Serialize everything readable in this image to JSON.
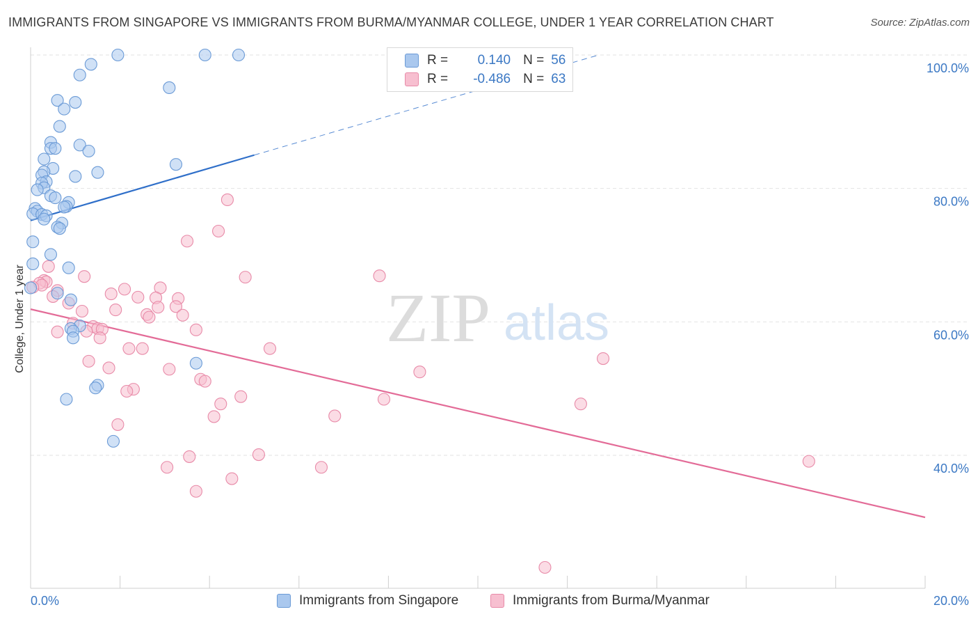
{
  "header": {
    "title": "IMMIGRANTS FROM SINGAPORE VS IMMIGRANTS FROM BURMA/MYANMAR COLLEGE, UNDER 1 YEAR CORRELATION CHART",
    "source": "Source: ZipAtlas.com"
  },
  "watermark": {
    "zip": "ZIP",
    "atlas": "atlas"
  },
  "legend": {
    "rows": [
      {
        "r_label": "R =",
        "r_value": "0.140",
        "n_label": "N =",
        "n_value": "56"
      },
      {
        "r_label": "R =",
        "r_value": "-0.486",
        "n_label": "N =",
        "n_value": "63"
      }
    ]
  },
  "bottom_legend": {
    "items": [
      {
        "label": "Immigrants from Singapore"
      },
      {
        "label": "Immigrants from Burma/Myanmar"
      }
    ]
  },
  "colors": {
    "singapore_fill": "#aac8ee",
    "singapore_stroke": "#6a9ad6",
    "singapore_line": "#2f6fc9",
    "burma_fill": "#f7bfd0",
    "burma_stroke": "#e88aa8",
    "burma_line": "#e36b97",
    "tick_label": "#3b78c4"
  },
  "chart_data": {
    "type": "scatter",
    "title": "IMMIGRANTS FROM SINGAPORE VS IMMIGRANTS FROM BURMA/MYANMAR COLLEGE, UNDER 1 YEAR CORRELATION CHART",
    "xlabel": "",
    "ylabel": "College, Under 1 year",
    "xlim": [
      0,
      20
    ],
    "ylim": [
      20,
      104
    ],
    "x_tick_labels": [
      "0.0%",
      "20.0%"
    ],
    "y_ticks": [
      40,
      60,
      80,
      100
    ],
    "y_tick_labels": [
      "40.0%",
      "60.0%",
      "80.0%",
      "100.0%"
    ],
    "grid": true,
    "legend_position": "top-center",
    "series": [
      {
        "name": "Immigrants from Singapore",
        "r": 0.14,
        "n": 56,
        "trend": {
          "x": [
            0.0,
            5.0
          ],
          "y": [
            75.2,
            85.0
          ],
          "dashed_to": [
            12.7,
            100.0
          ]
        },
        "points": [
          [
            1.95,
            100.0
          ],
          [
            3.9,
            100.0
          ],
          [
            4.65,
            100.0
          ],
          [
            1.35,
            98.6
          ],
          [
            1.1,
            97.0
          ],
          [
            3.1,
            95.1
          ],
          [
            0.6,
            93.2
          ],
          [
            1.0,
            92.9
          ],
          [
            0.75,
            91.9
          ],
          [
            0.65,
            89.3
          ],
          [
            0.45,
            86.9
          ],
          [
            1.1,
            86.5
          ],
          [
            0.45,
            86.0
          ],
          [
            0.55,
            86.0
          ],
          [
            1.3,
            85.6
          ],
          [
            0.3,
            84.4
          ],
          [
            3.25,
            83.6
          ],
          [
            0.5,
            83.0
          ],
          [
            0.3,
            82.5
          ],
          [
            1.5,
            82.4
          ],
          [
            0.25,
            82.0
          ],
          [
            1.0,
            81.8
          ],
          [
            0.35,
            81.0
          ],
          [
            0.25,
            80.8
          ],
          [
            0.3,
            80.1
          ],
          [
            0.15,
            79.8
          ],
          [
            0.45,
            78.9
          ],
          [
            0.55,
            78.6
          ],
          [
            0.85,
            77.9
          ],
          [
            0.8,
            77.3
          ],
          [
            0.75,
            77.2
          ],
          [
            0.1,
            77.0
          ],
          [
            0.15,
            76.6
          ],
          [
            0.05,
            76.2
          ],
          [
            0.25,
            76.1
          ],
          [
            0.35,
            75.9
          ],
          [
            0.3,
            75.4
          ],
          [
            0.7,
            74.8
          ],
          [
            0.6,
            74.2
          ],
          [
            0.65,
            74.0
          ],
          [
            0.05,
            72.0
          ],
          [
            0.45,
            70.1
          ],
          [
            0.05,
            68.7
          ],
          [
            0.85,
            68.1
          ],
          [
            0.0,
            65.1
          ],
          [
            0.6,
            64.3
          ],
          [
            0.9,
            63.3
          ],
          [
            1.1,
            59.4
          ],
          [
            0.9,
            59.0
          ],
          [
            0.95,
            58.6
          ],
          [
            0.95,
            57.6
          ],
          [
            3.7,
            53.8
          ],
          [
            1.5,
            50.5
          ],
          [
            1.45,
            50.1
          ],
          [
            0.8,
            48.4
          ],
          [
            1.85,
            42.1
          ]
        ]
      },
      {
        "name": "Immigrants from Burma/Myanmar",
        "r": -0.486,
        "n": 63,
        "trend": {
          "x": [
            0.0,
            20.0
          ],
          "y": [
            61.9,
            30.7
          ]
        },
        "points": [
          [
            4.4,
            78.3
          ],
          [
            4.2,
            73.6
          ],
          [
            3.5,
            72.1
          ],
          [
            0.4,
            68.3
          ],
          [
            7.8,
            66.9
          ],
          [
            4.8,
            66.7
          ],
          [
            1.2,
            66.8
          ],
          [
            0.3,
            66.2
          ],
          [
            0.35,
            66.0
          ],
          [
            0.2,
            65.8
          ],
          [
            0.25,
            65.5
          ],
          [
            0.05,
            65.2
          ],
          [
            2.9,
            65.1
          ],
          [
            2.1,
            64.9
          ],
          [
            0.6,
            64.7
          ],
          [
            1.8,
            64.2
          ],
          [
            0.5,
            63.8
          ],
          [
            2.4,
            63.7
          ],
          [
            2.8,
            63.6
          ],
          [
            3.3,
            63.5
          ],
          [
            0.85,
            62.8
          ],
          [
            3.25,
            62.3
          ],
          [
            2.85,
            62.2
          ],
          [
            1.9,
            61.8
          ],
          [
            1.15,
            61.6
          ],
          [
            2.6,
            61.1
          ],
          [
            3.4,
            61.0
          ],
          [
            2.65,
            60.7
          ],
          [
            0.95,
            59.8
          ],
          [
            1.4,
            59.3
          ],
          [
            1.5,
            59.0
          ],
          [
            1.6,
            58.9
          ],
          [
            3.7,
            58.8
          ],
          [
            1.25,
            58.6
          ],
          [
            0.6,
            58.5
          ],
          [
            1.55,
            57.6
          ],
          [
            5.35,
            56.0
          ],
          [
            2.2,
            56.0
          ],
          [
            2.5,
            56.0
          ],
          [
            12.8,
            54.5
          ],
          [
            1.3,
            54.1
          ],
          [
            1.75,
            53.1
          ],
          [
            3.1,
            52.9
          ],
          [
            8.7,
            52.5
          ],
          [
            3.8,
            51.4
          ],
          [
            3.9,
            51.1
          ],
          [
            2.3,
            49.9
          ],
          [
            2.15,
            49.6
          ],
          [
            4.7,
            48.8
          ],
          [
            7.9,
            48.4
          ],
          [
            12.3,
            47.7
          ],
          [
            4.25,
            47.7
          ],
          [
            6.8,
            45.9
          ],
          [
            4.1,
            45.8
          ],
          [
            1.95,
            44.6
          ],
          [
            5.1,
            40.1
          ],
          [
            3.55,
            39.8
          ],
          [
            17.4,
            39.1
          ],
          [
            6.5,
            38.2
          ],
          [
            3.05,
            38.2
          ],
          [
            4.5,
            36.5
          ],
          [
            3.7,
            34.6
          ],
          [
            11.5,
            23.2
          ]
        ]
      }
    ]
  }
}
